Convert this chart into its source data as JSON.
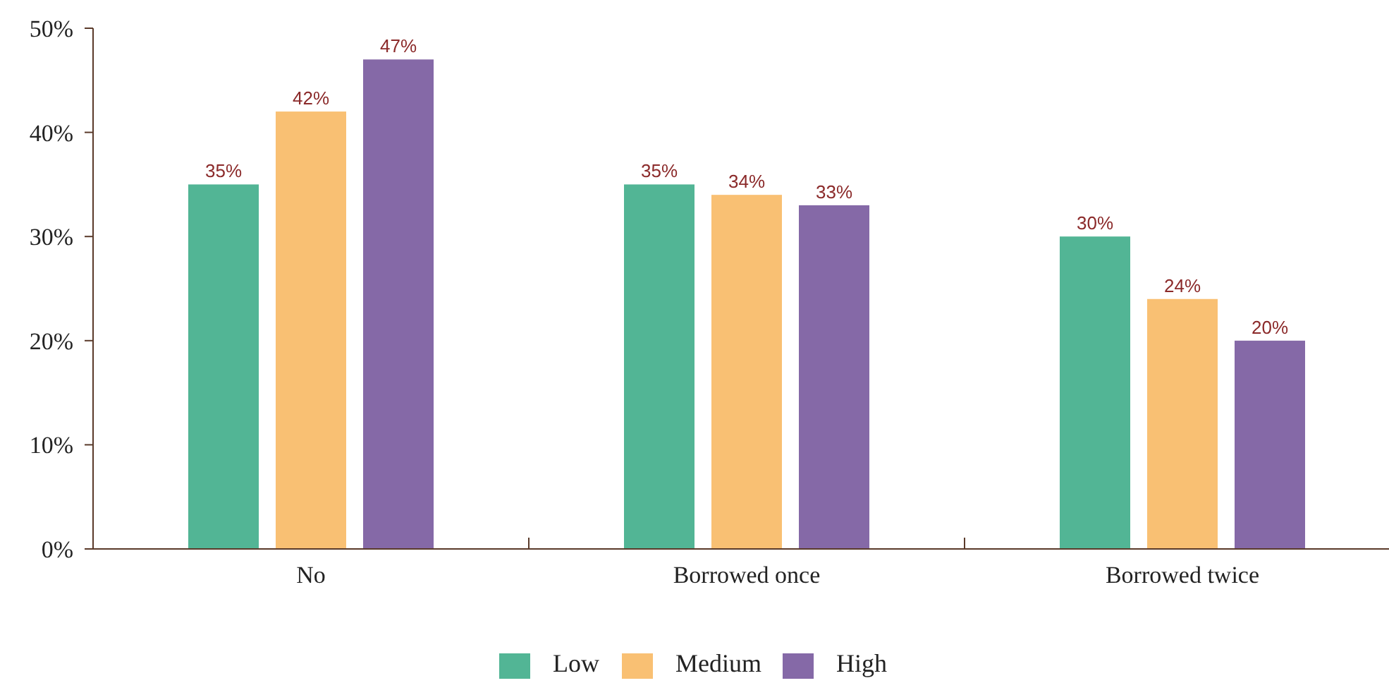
{
  "chart_data": {
    "type": "bar",
    "categories": [
      "No",
      "Borrowed once",
      "Borrowed twice"
    ],
    "series": [
      {
        "name": "Low",
        "color": "#52b595",
        "values": [
          35,
          35,
          30
        ]
      },
      {
        "name": "Medium",
        "color": "#f9c073",
        "values": [
          42,
          34,
          24
        ]
      },
      {
        "name": "High",
        "color": "#8569a7",
        "values": [
          47,
          33,
          20
        ]
      }
    ],
    "ylim": [
      0,
      50
    ],
    "yticks": [
      {
        "value": 0,
        "label": "0%"
      },
      {
        "value": 10,
        "label": "10%"
      },
      {
        "value": 20,
        "label": "20%"
      },
      {
        "value": 30,
        "label": "30%"
      },
      {
        "value": 40,
        "label": "40%"
      },
      {
        "value": 50,
        "label": "50%"
      }
    ],
    "value_labels": [
      [
        "35%",
        "35%",
        "30%"
      ],
      [
        "42%",
        "34%",
        "24%"
      ],
      [
        "47%",
        "33%",
        "20%"
      ]
    ],
    "legend": "bottom",
    "grid": false
  }
}
